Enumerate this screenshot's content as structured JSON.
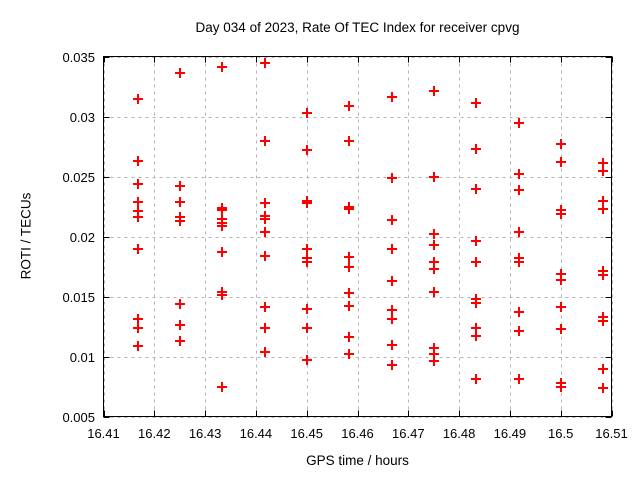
{
  "chart_data": {
    "type": "scatter",
    "title": "Day 034 of 2023, Rate Of TEC Index for receiver cpvg",
    "xlabel": "GPS time / hours",
    "ylabel": "ROTI / TECUs",
    "xlim": [
      16.41,
      16.51
    ],
    "ylim": [
      0.005,
      0.035
    ],
    "grid": true,
    "legend_position": "none",
    "x_ticks": {
      "values": [
        16.41,
        16.42,
        16.43,
        16.44,
        16.45,
        16.46,
        16.47,
        16.48,
        16.49,
        16.5,
        16.51
      ],
      "labels": [
        "16.41",
        "16.42",
        "16.43",
        "16.44",
        "16.45",
        "16.46",
        "16.47",
        "16.48",
        "16.49",
        "16.5",
        "16.51"
      ]
    },
    "y_ticks": {
      "values": [
        0.005,
        0.01,
        0.015,
        0.02,
        0.025,
        0.03,
        0.035
      ],
      "labels": [
        "0.005",
        "0.01",
        "0.015",
        "0.02",
        "0.025",
        "0.03",
        "0.035"
      ]
    },
    "colors": {
      "marker": "#ff0000",
      "grid": "#b3b3b3",
      "frame": "#000000",
      "background": "#ffffff",
      "text": "#000000"
    },
    "marker_shape": "plus",
    "series": [
      {
        "name": "ROTI",
        "points": [
          [
            16.4167,
            0.0315
          ],
          [
            16.4167,
            0.0263
          ],
          [
            16.4167,
            0.0244
          ],
          [
            16.4167,
            0.0229
          ],
          [
            16.4167,
            0.0221
          ],
          [
            16.4167,
            0.0216
          ],
          [
            16.4167,
            0.019
          ],
          [
            16.4167,
            0.0131
          ],
          [
            16.4167,
            0.0124
          ],
          [
            16.4167,
            0.0109
          ],
          [
            16.425,
            0.0336
          ],
          [
            16.425,
            0.0242
          ],
          [
            16.425,
            0.0229
          ],
          [
            16.425,
            0.0216
          ],
          [
            16.425,
            0.0213
          ],
          [
            16.425,
            0.0144
          ],
          [
            16.425,
            0.0126
          ],
          [
            16.425,
            0.0113
          ],
          [
            16.4333,
            0.0341
          ],
          [
            16.4333,
            0.0224
          ],
          [
            16.4333,
            0.0222
          ],
          [
            16.4333,
            0.0215
          ],
          [
            16.4333,
            0.0211
          ],
          [
            16.4333,
            0.0209
          ],
          [
            16.4333,
            0.0187
          ],
          [
            16.4333,
            0.0154
          ],
          [
            16.4333,
            0.0151
          ],
          [
            16.4333,
            0.0075
          ],
          [
            16.4417,
            0.0345
          ],
          [
            16.4417,
            0.028
          ],
          [
            16.4417,
            0.0228
          ],
          [
            16.4417,
            0.0217
          ],
          [
            16.4417,
            0.0215
          ],
          [
            16.4417,
            0.0204
          ],
          [
            16.4417,
            0.0184
          ],
          [
            16.4417,
            0.0141
          ],
          [
            16.4417,
            0.0124
          ],
          [
            16.4417,
            0.0104
          ],
          [
            16.45,
            0.0303
          ],
          [
            16.45,
            0.0272
          ],
          [
            16.45,
            0.023
          ],
          [
            16.45,
            0.0228
          ],
          [
            16.45,
            0.019
          ],
          [
            16.45,
            0.0182
          ],
          [
            16.45,
            0.0179
          ],
          [
            16.45,
            0.014
          ],
          [
            16.45,
            0.0124
          ],
          [
            16.45,
            0.0097
          ],
          [
            16.4583,
            0.0309
          ],
          [
            16.4583,
            0.028
          ],
          [
            16.4583,
            0.0225
          ],
          [
            16.4583,
            0.0223
          ],
          [
            16.4583,
            0.0183
          ],
          [
            16.4583,
            0.0175
          ],
          [
            16.4583,
            0.0153
          ],
          [
            16.4583,
            0.0142
          ],
          [
            16.4583,
            0.0116
          ],
          [
            16.4583,
            0.0102
          ],
          [
            16.4667,
            0.0316
          ],
          [
            16.4667,
            0.0249
          ],
          [
            16.4667,
            0.0214
          ],
          [
            16.4667,
            0.019
          ],
          [
            16.4667,
            0.0163
          ],
          [
            16.4667,
            0.0139
          ],
          [
            16.4667,
            0.0131
          ],
          [
            16.4667,
            0.011
          ],
          [
            16.4667,
            0.0093
          ],
          [
            16.475,
            0.0321
          ],
          [
            16.475,
            0.025
          ],
          [
            16.475,
            0.0202
          ],
          [
            16.475,
            0.0193
          ],
          [
            16.475,
            0.0179
          ],
          [
            16.475,
            0.0173
          ],
          [
            16.475,
            0.0154
          ],
          [
            16.475,
            0.0107
          ],
          [
            16.475,
            0.0102
          ],
          [
            16.475,
            0.0096
          ],
          [
            16.4833,
            0.0311
          ],
          [
            16.4833,
            0.0273
          ],
          [
            16.4833,
            0.024
          ],
          [
            16.4833,
            0.0196
          ],
          [
            16.4833,
            0.0179
          ],
          [
            16.4833,
            0.0148
          ],
          [
            16.4833,
            0.0145
          ],
          [
            16.4833,
            0.0124
          ],
          [
            16.4833,
            0.0117
          ],
          [
            16.4833,
            0.0081
          ],
          [
            16.4917,
            0.0295
          ],
          [
            16.4917,
            0.0252
          ],
          [
            16.4917,
            0.0239
          ],
          [
            16.4917,
            0.0204
          ],
          [
            16.4917,
            0.0182
          ],
          [
            16.4917,
            0.0179
          ],
          [
            16.4917,
            0.0137
          ],
          [
            16.4917,
            0.0121
          ],
          [
            16.4917,
            0.0081
          ],
          [
            16.5,
            0.0277
          ],
          [
            16.5,
            0.0262
          ],
          [
            16.5,
            0.0222
          ],
          [
            16.5,
            0.0219
          ],
          [
            16.5,
            0.0169
          ],
          [
            16.5,
            0.0164
          ],
          [
            16.5,
            0.0141
          ],
          [
            16.5,
            0.0123
          ],
          [
            16.5,
            0.0078
          ],
          [
            16.5,
            0.0075
          ],
          [
            16.5083,
            0.0261
          ],
          [
            16.5083,
            0.0255
          ],
          [
            16.5083,
            0.023
          ],
          [
            16.5083,
            0.0223
          ],
          [
            16.5083,
            0.0171
          ],
          [
            16.5083,
            0.0168
          ],
          [
            16.5083,
            0.0133
          ],
          [
            16.5083,
            0.013
          ],
          [
            16.5083,
            0.009
          ],
          [
            16.5083,
            0.0074
          ]
        ]
      }
    ]
  }
}
